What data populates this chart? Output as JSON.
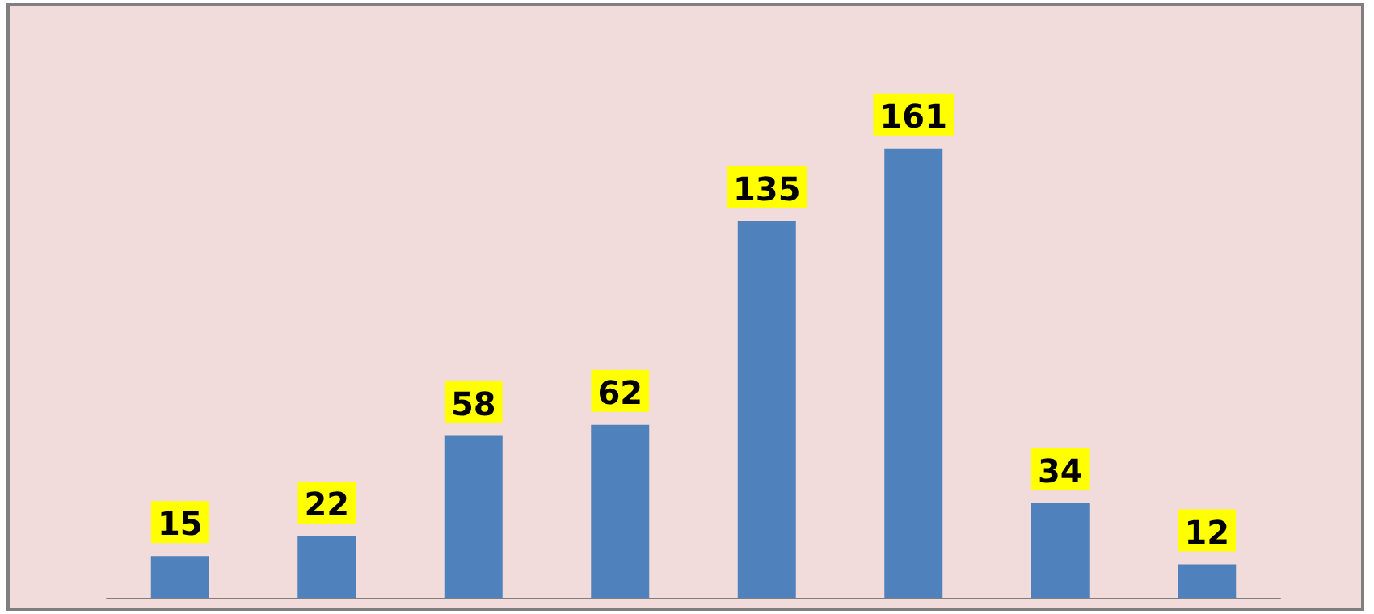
{
  "chart_data": {
    "type": "bar",
    "categories": [
      null,
      null,
      null,
      null,
      null,
      null,
      null,
      null
    ],
    "values": [
      15,
      22,
      58,
      62,
      135,
      161,
      34,
      12
    ],
    "color": "#4f81bd",
    "data_labels": true,
    "tick_labels": false,
    "grid": false
  }
}
